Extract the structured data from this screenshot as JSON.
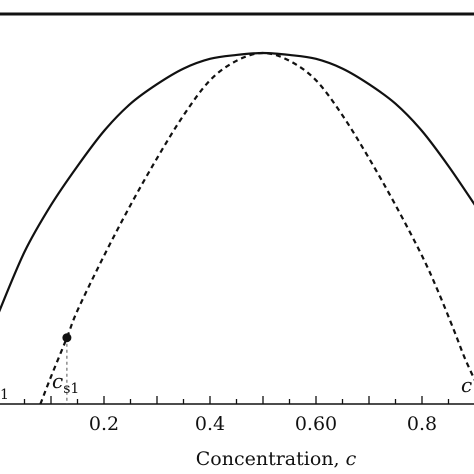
{
  "chart_data": {
    "type": "line",
    "xlabel": "Concentration, ",
    "xlabel_var": "c",
    "xlim": [
      0.0,
      0.9
    ],
    "ylim": [
      0.0,
      1.0
    ],
    "x_ticks": [
      0.2,
      0.4,
      0.6,
      0.8
    ],
    "x_tick_labels": [
      "0.2",
      "0.4",
      "0.60",
      "0.8"
    ],
    "grid": false,
    "legend": "none",
    "top_line_y": 0.965,
    "series": [
      {
        "style": "solid",
        "x": [
          0.0,
          0.05,
          0.1,
          0.15,
          0.2,
          0.25,
          0.3,
          0.35,
          0.4,
          0.45,
          0.5,
          0.55,
          0.6,
          0.65,
          0.7,
          0.75,
          0.8,
          0.85,
          0.9
        ],
        "y": [
          0.23,
          0.39,
          0.51,
          0.61,
          0.7,
          0.77,
          0.82,
          0.86,
          0.885,
          0.895,
          0.9,
          0.895,
          0.885,
          0.86,
          0.82,
          0.77,
          0.7,
          0.61,
          0.51
        ]
      },
      {
        "style": "dashed",
        "x": [
          0.08,
          0.1,
          0.13,
          0.15,
          0.2,
          0.25,
          0.3,
          0.35,
          0.4,
          0.45,
          0.5,
          0.55,
          0.6,
          0.65,
          0.7,
          0.75,
          0.8,
          0.83,
          0.86,
          0.88,
          0.9
        ],
        "y": [
          0.0,
          0.07,
          0.17,
          0.24,
          0.38,
          0.51,
          0.63,
          0.74,
          0.83,
          0.88,
          0.9,
          0.88,
          0.83,
          0.74,
          0.63,
          0.51,
          0.38,
          0.29,
          0.19,
          0.12,
          0.06
        ]
      }
    ],
    "marker_point": {
      "x": 0.13,
      "y": 0.17
    },
    "annotations": {
      "cs1_main": "c",
      "cs1_sub": "s1",
      "left_edge_label": "1",
      "right_edge_label": "c"
    }
  }
}
